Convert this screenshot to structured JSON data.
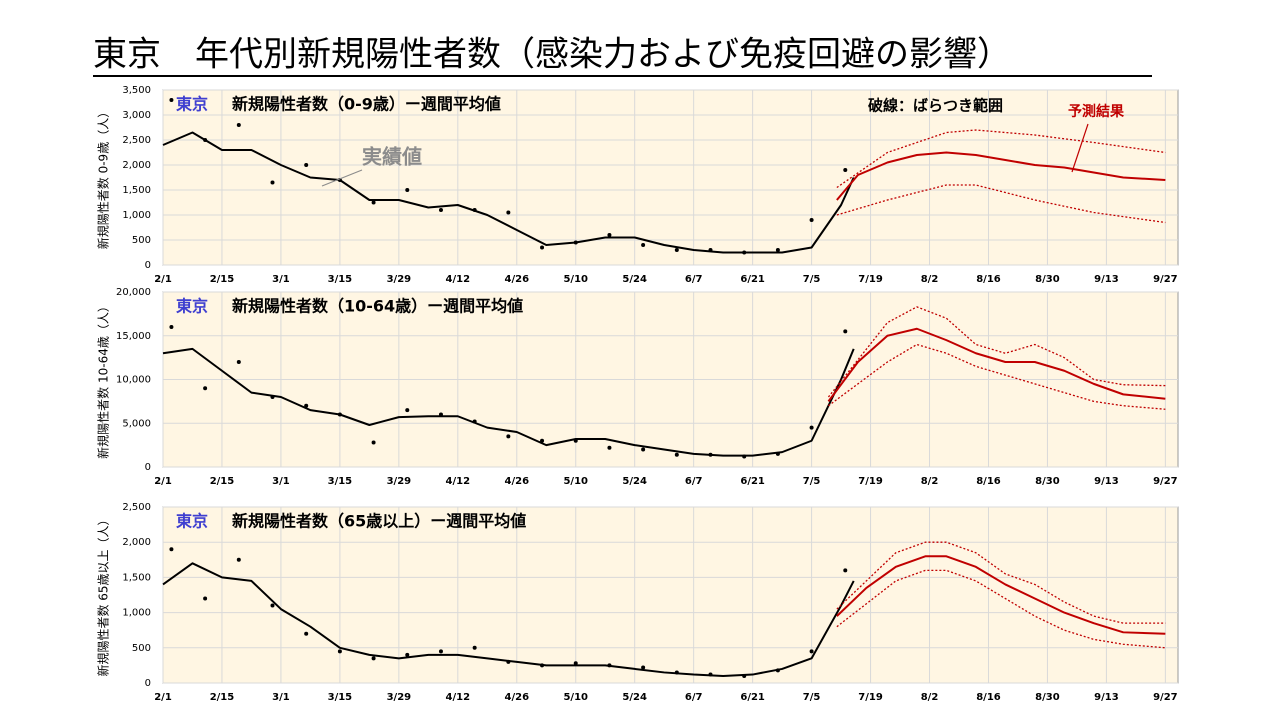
{
  "title": "東京　年代別新規陽性者数（感染力および免疫回避の影響）",
  "chart_data": [
    {
      "type": "line",
      "label": "東京",
      "subtitle": "新規陽性者数（0-9歳）ー週間平均値",
      "ylabel": "新規陽性者数 0-9歳（人）",
      "annotations": [
        {
          "text": "破線：ばらつき範囲",
          "color": "#000000"
        },
        {
          "text": "予測結果",
          "color": "#c00000"
        },
        {
          "text": "実績値",
          "color": "#8c8c8c"
        }
      ],
      "xlim": [
        0,
        241
      ],
      "ylim": [
        0,
        3500
      ],
      "xticks": [
        {
          "value": 0,
          "label": "2/1"
        },
        {
          "value": 14,
          "label": "2/15"
        },
        {
          "value": 28,
          "label": "3/1"
        },
        {
          "value": 42,
          "label": "3/15"
        },
        {
          "value": 56,
          "label": "3/29"
        },
        {
          "value": 70,
          "label": "4/12"
        },
        {
          "value": 84,
          "label": "4/26"
        },
        {
          "value": 98,
          "label": "5/10"
        },
        {
          "value": 112,
          "label": "5/24"
        },
        {
          "value": 126,
          "label": "6/7"
        },
        {
          "value": 140,
          "label": "6/21"
        },
        {
          "value": 154,
          "label": "7/5"
        },
        {
          "value": 168,
          "label": "7/19"
        },
        {
          "value": 182,
          "label": "8/2"
        },
        {
          "value": 196,
          "label": "8/16"
        },
        {
          "value": 210,
          "label": "8/30"
        },
        {
          "value": 224,
          "label": "9/13"
        },
        {
          "value": 238,
          "label": "9/27"
        }
      ],
      "yticks": [
        0,
        500,
        {
          "value": 1000,
          "label": "1,000"
        },
        {
          "value": 1500,
          "label": "1,500"
        },
        {
          "value": 2000,
          "label": "2,000"
        },
        {
          "value": 2500,
          "label": "2,500"
        },
        {
          "value": 3000,
          "label": "3,000"
        },
        {
          "value": 3500,
          "label": "3,500"
        }
      ],
      "grid": true,
      "series": [
        {
          "style": "dots",
          "color": "#000000",
          "x": [
            2,
            10,
            18,
            26,
            34,
            42,
            50,
            58,
            66,
            74,
            82,
            90,
            98,
            106,
            114,
            122,
            130,
            138,
            146,
            154,
            162
          ],
          "values": [
            3300,
            2500,
            2800,
            1650,
            2000,
            1700,
            1250,
            1500,
            1100,
            1100,
            1050,
            350,
            450,
            600,
            400,
            300,
            300,
            250,
            300,
            900,
            1900
          ]
        },
        {
          "style": "solid",
          "color": "#000000",
          "x": [
            0,
            7,
            14,
            21,
            28,
            35,
            42,
            49,
            56,
            63,
            70,
            77,
            84,
            91,
            98,
            105,
            112,
            119,
            126,
            133,
            140,
            147,
            154,
            161,
            164
          ],
          "values": [
            2400,
            2650,
            2300,
            2300,
            2000,
            1750,
            1700,
            1300,
            1300,
            1150,
            1200,
            1000,
            700,
            400,
            450,
            550,
            550,
            400,
            300,
            250,
            250,
            250,
            350,
            1200,
            1750
          ]
        },
        {
          "style": "solid",
          "color": "#c00000",
          "x": [
            160,
            165,
            172,
            179,
            186,
            193,
            200,
            207,
            214,
            221,
            228,
            238
          ],
          "values": [
            1300,
            1800,
            2050,
            2200,
            2250,
            2200,
            2100,
            2000,
            1950,
            1850,
            1750,
            1700
          ]
        },
        {
          "style": "dotted",
          "color": "#c00000",
          "x": [
            160,
            172,
            186,
            193,
            207,
            221,
            238
          ],
          "values": [
            1550,
            2250,
            2650,
            2700,
            2600,
            2450,
            2250
          ]
        },
        {
          "style": "dotted",
          "color": "#c00000",
          "x": [
            160,
            172,
            186,
            193,
            207,
            221,
            238
          ],
          "values": [
            1000,
            1300,
            1600,
            1600,
            1300,
            1050,
            850
          ]
        }
      ]
    },
    {
      "type": "line",
      "label": "東京",
      "subtitle": "新規陽性者数（10-64歳）ー週間平均値",
      "ylabel": "新規陽性者数 10-64歳（人）",
      "xlim": [
        0,
        241
      ],
      "ylim": [
        0,
        20000
      ],
      "xticks": [
        {
          "value": 0,
          "label": "2/1"
        },
        {
          "value": 14,
          "label": "2/15"
        },
        {
          "value": 28,
          "label": "3/1"
        },
        {
          "value": 42,
          "label": "3/15"
        },
        {
          "value": 56,
          "label": "3/29"
        },
        {
          "value": 70,
          "label": "4/12"
        },
        {
          "value": 84,
          "label": "4/26"
        },
        {
          "value": 98,
          "label": "5/10"
        },
        {
          "value": 112,
          "label": "5/24"
        },
        {
          "value": 126,
          "label": "6/7"
        },
        {
          "value": 140,
          "label": "6/21"
        },
        {
          "value": 154,
          "label": "7/5"
        },
        {
          "value": 168,
          "label": "7/19"
        },
        {
          "value": 182,
          "label": "8/2"
        },
        {
          "value": 196,
          "label": "8/16"
        },
        {
          "value": 210,
          "label": "8/30"
        },
        {
          "value": 224,
          "label": "9/13"
        },
        {
          "value": 238,
          "label": "9/27"
        }
      ],
      "yticks": [
        0,
        {
          "value": 5000,
          "label": "5,000"
        },
        {
          "value": 10000,
          "label": "10,000"
        },
        {
          "value": 15000,
          "label": "15,000"
        },
        {
          "value": 20000,
          "label": "20,000"
        }
      ],
      "grid": true,
      "series": [
        {
          "style": "dots",
          "color": "#000000",
          "x": [
            2,
            10,
            18,
            26,
            34,
            42,
            50,
            58,
            66,
            74,
            82,
            90,
            98,
            106,
            114,
            122,
            130,
            138,
            146,
            154,
            162
          ],
          "values": [
            16000,
            9000,
            12000,
            8000,
            7000,
            6000,
            2800,
            6500,
            6000,
            5200,
            3500,
            3000,
            3000,
            2200,
            2000,
            1400,
            1400,
            1200,
            1500,
            4500,
            15500
          ]
        },
        {
          "style": "solid",
          "color": "#000000",
          "x": [
            0,
            7,
            14,
            21,
            28,
            35,
            42,
            49,
            56,
            63,
            70,
            77,
            84,
            91,
            98,
            105,
            112,
            119,
            126,
            133,
            140,
            147,
            154,
            161,
            164
          ],
          "values": [
            13000,
            13500,
            11000,
            8500,
            8000,
            6500,
            6000,
            4800,
            5700,
            5800,
            5800,
            4500,
            4000,
            2500,
            3200,
            3200,
            2500,
            2000,
            1500,
            1300,
            1300,
            1700,
            3000,
            10000,
            13500
          ]
        },
        {
          "style": "solid",
          "color": "#c00000",
          "x": [
            158,
            165,
            172,
            179,
            186,
            193,
            200,
            207,
            214,
            221,
            228,
            238
          ],
          "values": [
            7500,
            12000,
            15000,
            15800,
            14500,
            13000,
            12000,
            12000,
            11000,
            9500,
            8300,
            7800
          ]
        },
        {
          "style": "dotted",
          "color": "#c00000",
          "x": [
            158,
            172,
            179,
            186,
            193,
            200,
            207,
            214,
            221,
            228,
            238
          ],
          "values": [
            8000,
            16500,
            18300,
            17000,
            14000,
            13000,
            14000,
            12500,
            10000,
            9400,
            9300
          ]
        },
        {
          "style": "dotted",
          "color": "#c00000",
          "x": [
            158,
            172,
            179,
            186,
            193,
            200,
            207,
            214,
            221,
            228,
            238
          ],
          "values": [
            7000,
            12000,
            14000,
            13000,
            11500,
            10500,
            9500,
            8500,
            7500,
            7000,
            6600
          ]
        }
      ]
    },
    {
      "type": "line",
      "label": "東京",
      "subtitle": "新規陽性者数（65歳以上）ー週間平均値",
      "ylabel": "新規陽性者数 65歳以上（人）",
      "xlim": [
        0,
        241
      ],
      "ylim": [
        0,
        2500
      ],
      "xticks": [
        {
          "value": 0,
          "label": "2/1"
        },
        {
          "value": 14,
          "label": "2/15"
        },
        {
          "value": 28,
          "label": "3/1"
        },
        {
          "value": 42,
          "label": "3/15"
        },
        {
          "value": 56,
          "label": "3/29"
        },
        {
          "value": 70,
          "label": "4/12"
        },
        {
          "value": 84,
          "label": "4/26"
        },
        {
          "value": 98,
          "label": "5/10"
        },
        {
          "value": 112,
          "label": "5/24"
        },
        {
          "value": 126,
          "label": "6/7"
        },
        {
          "value": 140,
          "label": "6/21"
        },
        {
          "value": 154,
          "label": "7/5"
        },
        {
          "value": 168,
          "label": "7/19"
        },
        {
          "value": 182,
          "label": "8/2"
        },
        {
          "value": 196,
          "label": "8/16"
        },
        {
          "value": 210,
          "label": "8/30"
        },
        {
          "value": 224,
          "label": "9/13"
        },
        {
          "value": 238,
          "label": "9/27"
        }
      ],
      "yticks": [
        0,
        500,
        {
          "value": 1000,
          "label": "1,000"
        },
        {
          "value": 1500,
          "label": "1,500"
        },
        {
          "value": 2000,
          "label": "2,000"
        },
        {
          "value": 2500,
          "label": "2,500"
        }
      ],
      "grid": true,
      "series": [
        {
          "style": "dots",
          "color": "#000000",
          "x": [
            2,
            10,
            18,
            26,
            34,
            42,
            50,
            58,
            66,
            74,
            82,
            90,
            98,
            106,
            114,
            122,
            130,
            138,
            146,
            154,
            162
          ],
          "values": [
            1900,
            1200,
            1750,
            1100,
            700,
            450,
            350,
            400,
            450,
            500,
            300,
            250,
            280,
            250,
            220,
            150,
            120,
            100,
            180,
            450,
            1600
          ]
        },
        {
          "style": "solid",
          "color": "#000000",
          "x": [
            0,
            7,
            14,
            21,
            28,
            35,
            42,
            49,
            56,
            63,
            70,
            77,
            84,
            91,
            98,
            105,
            112,
            119,
            126,
            133,
            140,
            147,
            154,
            161,
            164
          ],
          "values": [
            1400,
            1700,
            1500,
            1450,
            1050,
            800,
            500,
            400,
            350,
            400,
            400,
            350,
            300,
            250,
            250,
            250,
            200,
            150,
            120,
            100,
            120,
            200,
            350,
            1100,
            1450
          ]
        },
        {
          "style": "solid",
          "color": "#c00000",
          "x": [
            160,
            167,
            174,
            181,
            186,
            193,
            200,
            207,
            214,
            221,
            228,
            238
          ],
          "values": [
            950,
            1350,
            1650,
            1800,
            1800,
            1650,
            1400,
            1200,
            1000,
            850,
            720,
            700
          ]
        },
        {
          "style": "dotted",
          "color": "#c00000",
          "x": [
            160,
            174,
            181,
            186,
            193,
            200,
            207,
            214,
            221,
            228,
            238
          ],
          "values": [
            1050,
            1850,
            2000,
            2000,
            1850,
            1550,
            1400,
            1150,
            950,
            850,
            850
          ]
        },
        {
          "style": "dotted",
          "color": "#c00000",
          "x": [
            160,
            174,
            181,
            186,
            193,
            200,
            207,
            214,
            221,
            228,
            238
          ],
          "values": [
            800,
            1450,
            1600,
            1600,
            1450,
            1200,
            950,
            750,
            620,
            550,
            500
          ]
        }
      ]
    }
  ]
}
